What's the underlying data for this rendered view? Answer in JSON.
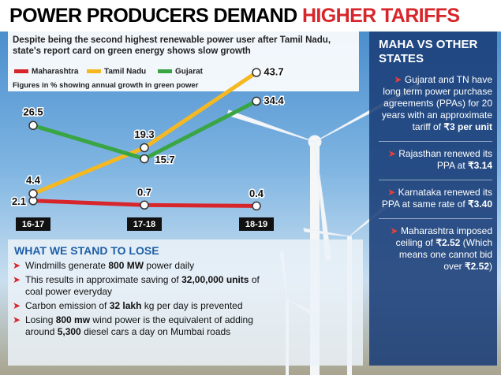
{
  "header": {
    "title_part1": "POWER PRODUCERS DEMAND",
    "title_part2": "HIGHER TARIFFS"
  },
  "chart_data": {
    "type": "line",
    "subtitle": "Despite being the second highest renewable power user after Tamil Nadu, state's report card on green energy shows slow growth",
    "note": "Figures in % showing annual growth in green power",
    "categories": [
      "16-17",
      "17-18",
      "18-19"
    ],
    "series": [
      {
        "name": "Maharashtra",
        "color": "#d7262b",
        "values": [
          2.1,
          0.7,
          0.4
        ]
      },
      {
        "name": "Tamil Nadu",
        "color": "#f5b821",
        "values": [
          4.4,
          19.3,
          43.7
        ]
      },
      {
        "name": "Gujarat",
        "color": "#3aa543",
        "values": [
          26.5,
          15.7,
          34.4
        ]
      }
    ]
  },
  "stand_to_lose": {
    "title": "WHAT WE STAND TO LOSE",
    "items": [
      [
        "Windmills generate ",
        "800 MW",
        " power daily"
      ],
      [
        "This results in approximate saving of ",
        "32,00,000 units",
        " of coal power everyday"
      ],
      [
        "Carbon emission of ",
        "32 lakh",
        " kg per day is prevented"
      ],
      [
        "Losing ",
        "800 mw",
        " wind power is the equivalent of adding around ",
        "5,300",
        " diesel cars a day on Mumbai roads"
      ]
    ]
  },
  "sidebar": {
    "title": "MAHA VS OTHER STATES",
    "items": [
      [
        "Gujarat and TN have long term power purchase agreements (PPAs) for 20 years with an approximate tariff of ",
        "₹3 per unit"
      ],
      [
        "Rajasthan renewed its PPA at ",
        "₹3.14"
      ],
      [
        "Karnataka renewed its PPA at same rate of ",
        "₹3.40"
      ],
      [
        "Maharashtra imposed ceiling of ",
        "₹2.52",
        " (Which means one cannot bid over ",
        "₹2.52",
        ")"
      ]
    ]
  }
}
